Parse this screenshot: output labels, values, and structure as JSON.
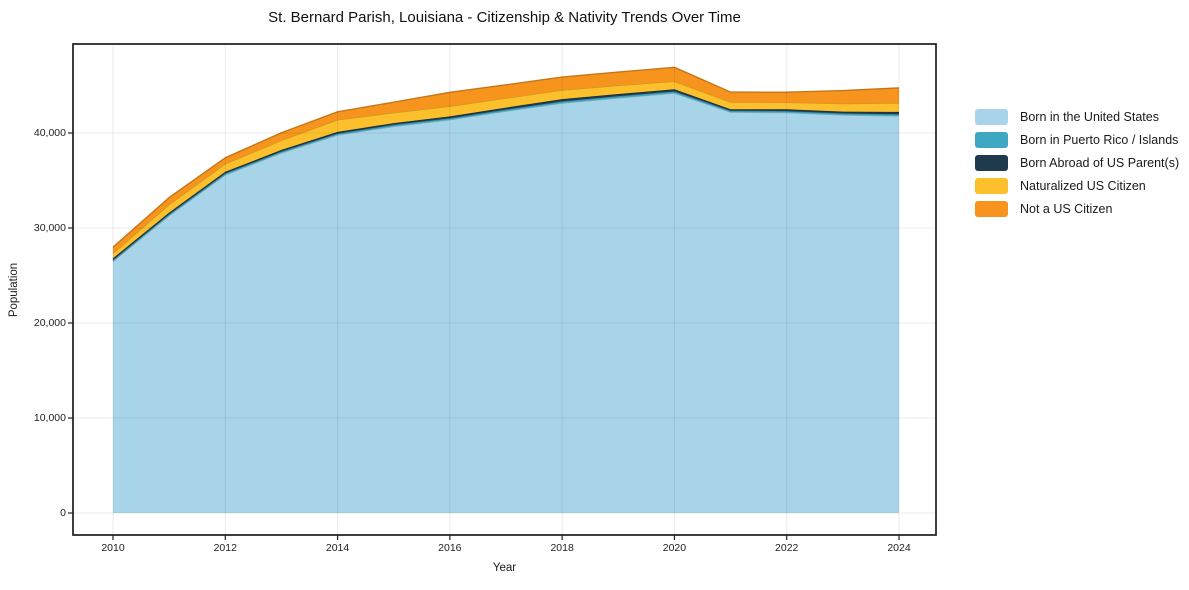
{
  "page": {
    "title": "St. Bernard Parish, Louisiana - Citizenship & Nativity Trends Over Time"
  },
  "chart_data": {
    "type": "area",
    "stacked": true,
    "title": "St. Bernard Parish, Louisiana - Citizenship & Nativity Trends Over Time",
    "xlabel": "Year",
    "ylabel": "Population",
    "x": [
      2010,
      2011,
      2012,
      2013,
      2014,
      2015,
      2016,
      2017,
      2018,
      2019,
      2020,
      2021,
      2022,
      2023,
      2024
    ],
    "series": [
      {
        "name": "Born in the United States",
        "color": "#a8d4e9",
        "values": [
          26500,
          31300,
          35600,
          37900,
          39800,
          40700,
          41400,
          42300,
          43150,
          43700,
          44200,
          42200,
          42150,
          41900,
          41800
        ]
      },
      {
        "name": "Born in Puerto Rico / Islands",
        "color": "#3ea8c4",
        "values": [
          130,
          140,
          150,
          150,
          150,
          160,
          160,
          170,
          180,
          180,
          180,
          150,
          160,
          160,
          180
        ]
      },
      {
        "name": "Born Abroad of US Parent(s)",
        "color": "#1f3a4d",
        "values": [
          180,
          180,
          170,
          170,
          170,
          180,
          190,
          200,
          240,
          230,
          220,
          160,
          180,
          190,
          240
        ]
      },
      {
        "name": "Naturalized US Citizen",
        "color": "#fdc02d",
        "values": [
          530,
          840,
          840,
          1000,
          1270,
          1100,
          1060,
          1000,
          950,
          900,
          840,
          740,
          740,
          840,
          950
        ]
      },
      {
        "name": "Not a US Citizen",
        "color": "#f7941e",
        "values": [
          640,
          740,
          630,
          800,
          840,
          1100,
          1470,
          1400,
          1360,
          1400,
          1480,
          1060,
          1060,
          1370,
          1580
        ]
      }
    ],
    "totals": [
      27980,
      33200,
      37390,
      40020,
      42230,
      43240,
      44280,
      45070,
      45880,
      46410,
      46920,
      44310,
      44290,
      44460,
      44750
    ],
    "xticks": [
      2010,
      2012,
      2014,
      2016,
      2018,
      2020,
      2022,
      2024
    ],
    "yticks": [
      {
        "label": "0",
        "value": 0
      },
      {
        "label": "10,000",
        "value": 10000
      },
      {
        "label": "20,000",
        "value": 20000
      },
      {
        "label": "30,000",
        "value": 30000
      },
      {
        "label": "40,000",
        "value": 40000
      }
    ],
    "ylim": [
      0,
      49400
    ],
    "grid": true,
    "legend_position": "right-outside"
  },
  "colors": {
    "background": "#ffffff",
    "grid": "rgba(0,0,0,0.08)",
    "spine": "#1c1c1c",
    "tick": "#222222",
    "text": "#1a1a1a"
  }
}
